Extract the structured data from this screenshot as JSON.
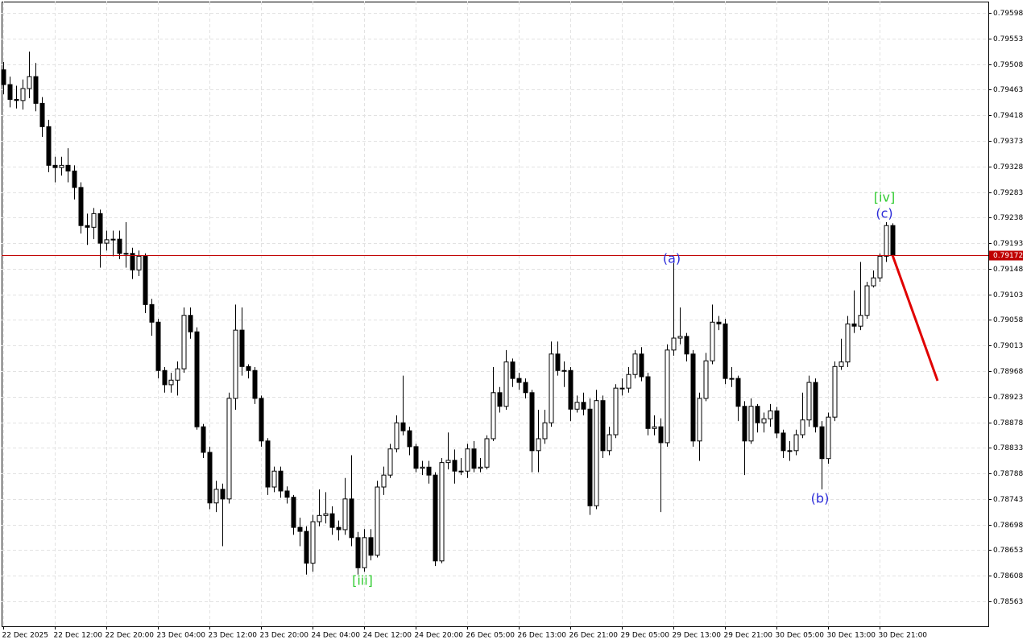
{
  "chart_data": {
    "type": "candlestick",
    "categories": [
      "22 Dec 2025",
      null,
      null,
      null,
      null,
      null,
      null,
      null,
      "22 Dec 12:00",
      null,
      null,
      null,
      null,
      null,
      null,
      null,
      "22 Dec 20:00",
      null,
      null,
      null,
      null,
      null,
      null,
      null,
      "23 Dec 04:00",
      null,
      null,
      null,
      null,
      null,
      null,
      null,
      "23 Dec 12:00",
      null,
      null,
      null,
      null,
      null,
      null,
      null,
      "23 Dec 20:00",
      null,
      null,
      null,
      null,
      null,
      null,
      null,
      "24 Dec 04:00",
      null,
      null,
      null,
      null,
      null,
      null,
      null,
      "24 Dec 12:00",
      null,
      null,
      null,
      null,
      null,
      null,
      null,
      "24 Dec 20:00",
      null,
      null,
      null,
      null,
      null,
      null,
      null,
      "26 Dec 05:00",
      null,
      null,
      null,
      null,
      null,
      null,
      null,
      "26 Dec 13:00",
      null,
      null,
      null,
      null,
      null,
      null,
      null,
      "26 Dec 21:00",
      null,
      null,
      null,
      null,
      null,
      null,
      null,
      "29 Dec 05:00",
      null,
      null,
      null,
      null,
      null,
      null,
      null,
      "29 Dec 13:00",
      null,
      null,
      null,
      null,
      null,
      null,
      null,
      "29 Dec 21:00",
      null,
      null,
      null,
      null,
      null,
      null,
      null,
      "30 Dec 05:00",
      null,
      null,
      null,
      null,
      null,
      null,
      null,
      "30 Dec 13:00",
      null,
      null,
      null,
      null,
      null,
      null,
      null,
      "30 Dec 21:00",
      null,
      null
    ],
    "open": [
      0.79498,
      0.79472,
      0.79446,
      0.79444,
      0.79465,
      0.79486,
      0.79439,
      0.79398,
      0.7933,
      0.79326,
      0.7933,
      0.7932,
      0.79291,
      0.79224,
      0.79221,
      0.79245,
      0.79193,
      0.79199,
      0.792,
      0.79175,
      0.79175,
      0.79146,
      0.7917,
      0.79085,
      0.79054,
      0.78969,
      0.78944,
      0.78952,
      0.78972,
      0.79066,
      0.79037,
      0.7887,
      0.78825,
      0.78736,
      0.7876,
      0.78743,
      0.7892,
      0.7904,
      0.78976,
      0.78969,
      0.7892,
      0.78845,
      0.78764,
      0.78792,
      0.78757,
      0.78746,
      0.78693,
      0.78686,
      0.7863,
      0.78703,
      0.78714,
      0.78717,
      0.78693,
      0.78689,
      0.78743,
      0.78675,
      0.78622,
      0.78675,
      0.78644,
      0.78764,
      0.78785,
      0.78831,
      0.78877,
      0.78863,
      0.78835,
      0.78797,
      0.78799,
      0.78785,
      0.78634,
      0.78807,
      0.78811,
      0.78792,
      0.78792,
      0.78831,
      0.78797,
      0.78799,
      0.78849,
      0.7893,
      0.78906,
      0.78984,
      0.78955,
      0.78948,
      0.7893,
      0.78828,
      0.78849,
      0.78877,
      0.78998,
      0.78969,
      0.78969,
      0.78901,
      0.78913,
      0.78901,
      0.78731,
      0.78916,
      0.78828,
      0.78856,
      0.78938,
      0.78938,
      0.78962,
      0.78998,
      0.78958,
      0.78867,
      0.7887,
      0.78842,
      0.79005,
      0.79026,
      0.79029,
      0.78998,
      0.78845,
      0.7892,
      0.78986,
      0.79054,
      0.79051,
      0.78955,
      0.78955,
      0.78906,
      0.78845,
      0.78906,
      0.78877,
      0.78884,
      0.78898,
      0.78859,
      0.78828,
      0.78828,
      0.78856,
      0.78882,
      0.78948,
      0.7887,
      0.78814,
      0.78887,
      0.78976,
      0.78984,
      0.79051,
      0.79047,
      0.79066,
      0.79118,
      0.79132,
      0.7917,
      0.79224
    ],
    "high": [
      0.79512,
      0.79486,
      0.7947,
      0.79481,
      0.7953,
      0.7951,
      0.7945,
      0.7941,
      0.79345,
      0.79345,
      0.7936,
      0.7933,
      0.793,
      0.79245,
      0.79255,
      0.79252,
      0.79215,
      0.79215,
      0.79215,
      0.7923,
      0.79185,
      0.7918,
      0.79175,
      0.79095,
      0.7906,
      0.78975,
      0.78965,
      0.78985,
      0.7908,
      0.7908,
      0.79045,
      0.78875,
      0.78835,
      0.78775,
      0.7877,
      0.7893,
      0.79085,
      0.7908,
      0.7898,
      0.78975,
      0.78925,
      0.7885,
      0.788,
      0.788,
      0.78765,
      0.7875,
      0.7871,
      0.78695,
      0.78715,
      0.7876,
      0.78755,
      0.7873,
      0.78705,
      0.7878,
      0.7882,
      0.78685,
      0.7869,
      0.7869,
      0.78775,
      0.788,
      0.7884,
      0.7889,
      0.7896,
      0.7887,
      0.7884,
      0.7881,
      0.7881,
      0.7879,
      0.78815,
      0.7886,
      0.7883,
      0.78815,
      0.7884,
      0.78845,
      0.78815,
      0.78855,
      0.78975,
      0.7894,
      0.79005,
      0.7899,
      0.78965,
      0.78955,
      0.78935,
      0.789,
      0.789,
      0.7902,
      0.7902,
      0.78985,
      0.78975,
      0.78925,
      0.7893,
      0.7892,
      0.78935,
      0.78925,
      0.7887,
      0.78945,
      0.78955,
      0.78975,
      0.79005,
      0.7901,
      0.78965,
      0.7889,
      0.78885,
      0.79015,
      0.79158,
      0.7908,
      0.79035,
      0.79005,
      0.7893,
      0.79,
      0.79085,
      0.79065,
      0.7906,
      0.78975,
      0.7896,
      0.78915,
      0.7892,
      0.7891,
      0.78895,
      0.7891,
      0.78905,
      0.78865,
      0.78845,
      0.78865,
      0.7893,
      0.7896,
      0.78955,
      0.7888,
      0.78895,
      0.78985,
      0.79025,
      0.79065,
      0.7911,
      0.7916,
      0.79125,
      0.79145,
      0.79175,
      0.7923,
      0.79228
    ],
    "low": [
      0.79455,
      0.79432,
      0.7943,
      0.79428,
      0.79448,
      0.79425,
      0.7938,
      0.79318,
      0.793,
      0.79312,
      0.793,
      0.7927,
      0.7921,
      0.7919,
      0.792,
      0.7915,
      0.7918,
      0.7917,
      0.79165,
      0.7915,
      0.7913,
      0.79135,
      0.7907,
      0.7903,
      0.78955,
      0.7893,
      0.7893,
      0.78925,
      0.78965,
      0.79025,
      0.78865,
      0.78815,
      0.78725,
      0.7872,
      0.7866,
      0.78735,
      0.789,
      0.7896,
      0.78955,
      0.7891,
      0.78835,
      0.7875,
      0.78755,
      0.78745,
      0.78735,
      0.7868,
      0.7866,
      0.7861,
      0.78615,
      0.78695,
      0.787,
      0.7868,
      0.7867,
      0.7868,
      0.7866,
      0.7861,
      0.78615,
      0.78635,
      0.7864,
      0.7875,
      0.7878,
      0.78825,
      0.78855,
      0.7882,
      0.7879,
      0.78785,
      0.7877,
      0.78625,
      0.7863,
      0.78795,
      0.7877,
      0.78785,
      0.7878,
      0.7879,
      0.7879,
      0.78795,
      0.78845,
      0.78895,
      0.789,
      0.7894,
      0.78935,
      0.7892,
      0.7879,
      0.7879,
      0.7884,
      0.7887,
      0.7896,
      0.7894,
      0.7888,
      0.78895,
      0.7889,
      0.78715,
      0.78725,
      0.78815,
      0.7882,
      0.7885,
      0.78925,
      0.7893,
      0.78955,
      0.7895,
      0.78855,
      0.78855,
      0.7872,
      0.78835,
      0.78995,
      0.79015,
      0.78985,
      0.78835,
      0.7881,
      0.78915,
      0.7898,
      0.7904,
      0.78945,
      0.7894,
      0.7888,
      0.78785,
      0.7884,
      0.7886,
      0.7886,
      0.7887,
      0.7885,
      0.78815,
      0.7881,
      0.7882,
      0.7885,
      0.7887,
      0.7886,
      0.7876,
      0.78805,
      0.7888,
      0.7897,
      0.78975,
      0.79035,
      0.7904,
      0.7906,
      0.79115,
      0.79125,
      0.7916,
      0.79165
    ],
    "close": [
      0.79472,
      0.79446,
      0.79444,
      0.79465,
      0.79486,
      0.79439,
      0.79398,
      0.7933,
      0.79326,
      0.7933,
      0.7932,
      0.79291,
      0.79224,
      0.79221,
      0.79245,
      0.79193,
      0.79199,
      0.792,
      0.79175,
      0.79175,
      0.79146,
      0.7917,
      0.79085,
      0.79054,
      0.78969,
      0.78944,
      0.78952,
      0.78972,
      0.79066,
      0.79037,
      0.7887,
      0.78825,
      0.78736,
      0.7876,
      0.78743,
      0.7892,
      0.7904,
      0.78976,
      0.78969,
      0.7892,
      0.78845,
      0.78764,
      0.78792,
      0.78757,
      0.78746,
      0.78693,
      0.78686,
      0.7863,
      0.78703,
      0.78714,
      0.78717,
      0.78693,
      0.78689,
      0.78743,
      0.78675,
      0.78622,
      0.78675,
      0.78644,
      0.78764,
      0.78785,
      0.78831,
      0.78877,
      0.78863,
      0.78835,
      0.78797,
      0.78799,
      0.78785,
      0.78634,
      0.78807,
      0.78811,
      0.78792,
      0.78792,
      0.78831,
      0.78797,
      0.78799,
      0.78849,
      0.7893,
      0.78906,
      0.78984,
      0.78955,
      0.78948,
      0.7893,
      0.78828,
      0.78849,
      0.78877,
      0.78998,
      0.78969,
      0.78969,
      0.78901,
      0.78913,
      0.78901,
      0.78731,
      0.78916,
      0.78828,
      0.78856,
      0.78938,
      0.78938,
      0.78962,
      0.78998,
      0.78958,
      0.78867,
      0.7887,
      0.78842,
      0.79005,
      0.79026,
      0.79029,
      0.78998,
      0.78845,
      0.7892,
      0.78986,
      0.79054,
      0.79051,
      0.78955,
      0.78955,
      0.78906,
      0.78845,
      0.78906,
      0.78877,
      0.78884,
      0.78898,
      0.78859,
      0.78828,
      0.78828,
      0.78856,
      0.78882,
      0.78948,
      0.7887,
      0.78814,
      0.78887,
      0.78976,
      0.78984,
      0.79051,
      0.79047,
      0.79066,
      0.79118,
      0.79132,
      0.7917,
      0.79224,
      0.79172
    ],
    "up_color": "#ffffff",
    "down_color": "#000000",
    "ylim": [
      0.78519,
      0.79618
    ],
    "yticks": [
      0.79598,
      0.79553,
      0.79508,
      0.79463,
      0.79418,
      0.79373,
      0.79328,
      0.79283,
      0.79238,
      0.79193,
      0.79148,
      0.79103,
      0.79058,
      0.79013,
      0.78968,
      0.78923,
      0.78878,
      0.78833,
      0.78788,
      0.78743,
      0.78698,
      0.78653,
      0.78608,
      0.78563
    ],
    "grid": true,
    "last_price": {
      "value": 0.79172,
      "color": "#c00000"
    },
    "forecast": {
      "color": "#e00000",
      "values": [
        0.79172,
        0.78951
      ]
    },
    "annotations": [
      {
        "text": "[iv]",
        "color": "#33cc33"
      },
      {
        "text": "(c)",
        "color": "#2a2ad8"
      },
      {
        "text": "(a)",
        "color": "#2a2ad8"
      },
      {
        "text": "(b)",
        "color": "#2a2ad8"
      },
      {
        "text": "[iii]",
        "color": "#33cc33"
      }
    ]
  }
}
